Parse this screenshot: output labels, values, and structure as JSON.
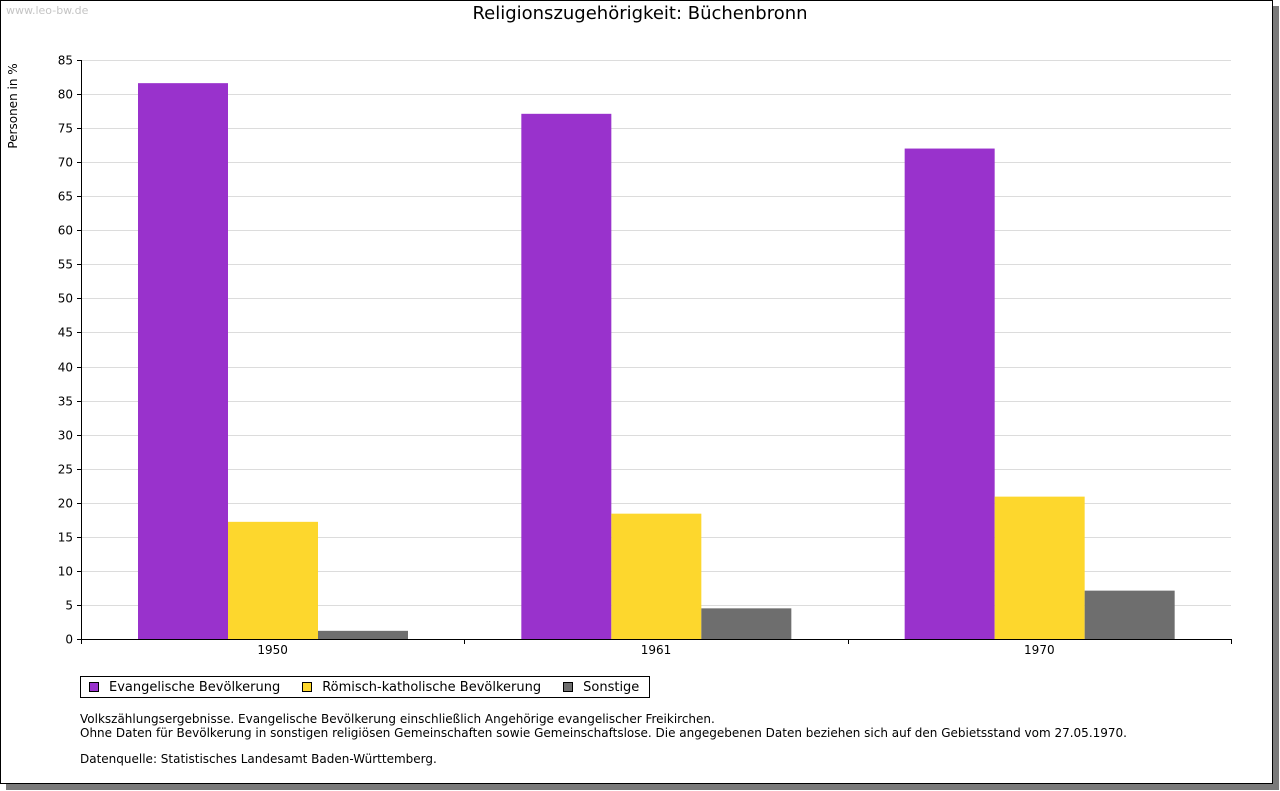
{
  "watermark": "www.leo-bw.de",
  "chart_data": {
    "type": "bar",
    "title": "Religionszugehörigkeit: Büchenbronn",
    "xlabel": "",
    "ylabel": "Personen in %",
    "ylim": [
      0,
      85
    ],
    "ytick_step": 5,
    "grid": true,
    "legend_position": "bottom-left",
    "categories": [
      "1950",
      "1961",
      "1970"
    ],
    "series": [
      {
        "name": "Evangelische Bevölkerung",
        "color": "#9932cc",
        "values": [
          81.6,
          77.1,
          72.0
        ]
      },
      {
        "name": "Römisch-katholische Bevölkerung",
        "color": "#fdd72d",
        "values": [
          17.2,
          18.4,
          20.9
        ]
      },
      {
        "name": "Sonstige",
        "color": "#6e6e6e",
        "values": [
          1.2,
          4.5,
          7.1
        ]
      }
    ]
  },
  "notes": {
    "line1": "Volkszählungsergebnisse. Evangelische Bevölkerung einschließlich Angehörige evangelischer Freikirchen.",
    "line2": "Ohne Daten für Bevölkerung in sonstigen religiösen Gemeinschaften sowie Gemeinschaftslose. Die angegebenen Daten beziehen sich auf den Gebietsstand vom 27.05.1970.",
    "source": "Datenquelle: Statistisches Landesamt Baden-Württemberg."
  }
}
